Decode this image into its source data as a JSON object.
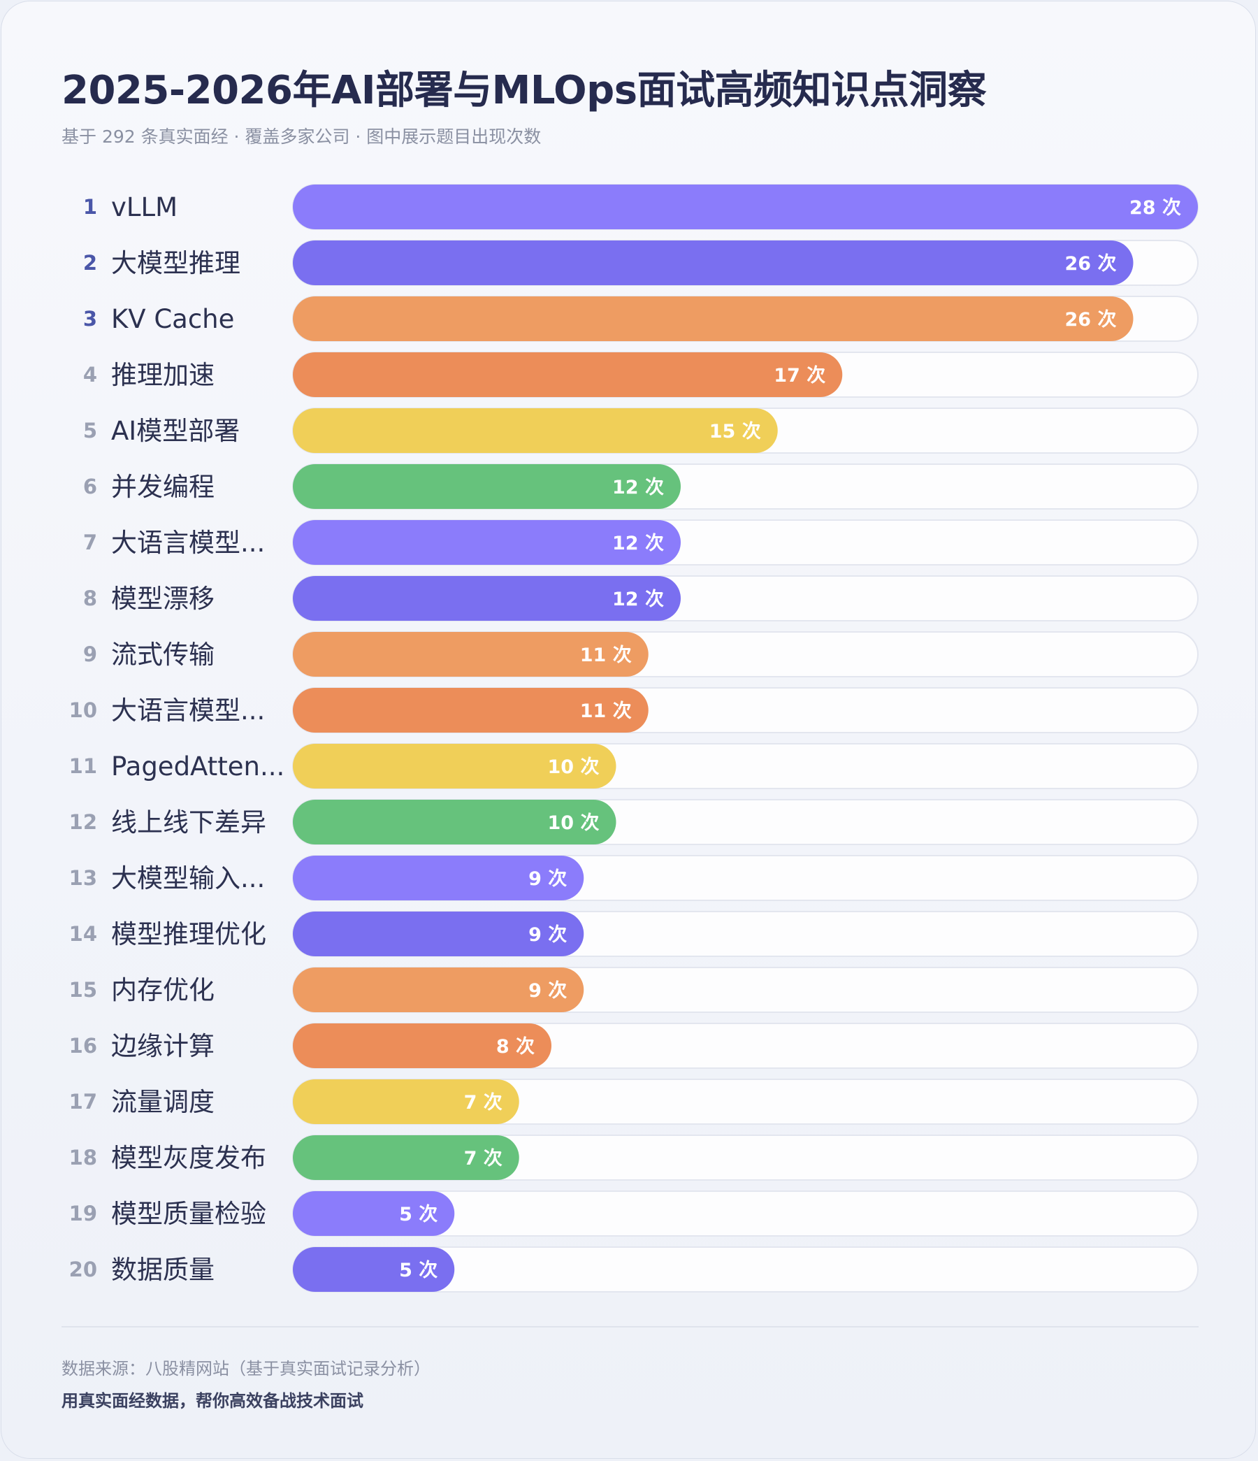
{
  "header": {
    "title": "2025-2026年AI部署与MLOps面试高频知识点洞察",
    "subtitle": "基于 292 条真实面经 · 覆盖多家公司 · 图中展示题目出现次数"
  },
  "footer": {
    "source": "数据来源：八股精网站（基于真实面试记录分析）",
    "slogan": "用真实面经数据，帮你高效备战技术面试"
  },
  "colors": {
    "palette": [
      "#8b7cfb",
      "#7a6ff0",
      "#ee9c62",
      "#ec8d59",
      "#f0cf58",
      "#66c27c"
    ],
    "track": "#fdfdfe",
    "track_border": "#e3e6ef",
    "rank_top": "#4a56a8",
    "rank_rest": "#9aa0b2"
  },
  "chart_data": {
    "type": "bar",
    "orientation": "horizontal",
    "unit": "次",
    "xlim": [
      0,
      28
    ],
    "categories": [
      "vLLM",
      "大模型推理",
      "KV Cache",
      "推理加速",
      "AI模型部署",
      "并发编程",
      "大语言模型...",
      "模型漂移",
      "流式传输",
      "大语言模型...",
      "PagedAtten...",
      "线上线下差异",
      "大模型输入...",
      "模型推理优化",
      "内存优化",
      "边缘计算",
      "流量调度",
      "模型灰度发布",
      "模型质量检验",
      "数据质量"
    ],
    "ranks": [
      1,
      2,
      3,
      4,
      5,
      6,
      7,
      8,
      9,
      10,
      11,
      12,
      13,
      14,
      15,
      16,
      17,
      18,
      19,
      20
    ],
    "values": [
      28,
      26,
      26,
      17,
      15,
      12,
      12,
      12,
      11,
      11,
      10,
      10,
      9,
      9,
      9,
      8,
      7,
      7,
      5,
      5
    ],
    "value_labels": [
      "28 次",
      "26 次",
      "26 次",
      "17 次",
      "15 次",
      "12 次",
      "12 次",
      "12 次",
      "11 次",
      "11 次",
      "10 次",
      "10 次",
      "9 次",
      "9 次",
      "9 次",
      "8 次",
      "7 次",
      "7 次",
      "5 次",
      "5 次"
    ]
  }
}
